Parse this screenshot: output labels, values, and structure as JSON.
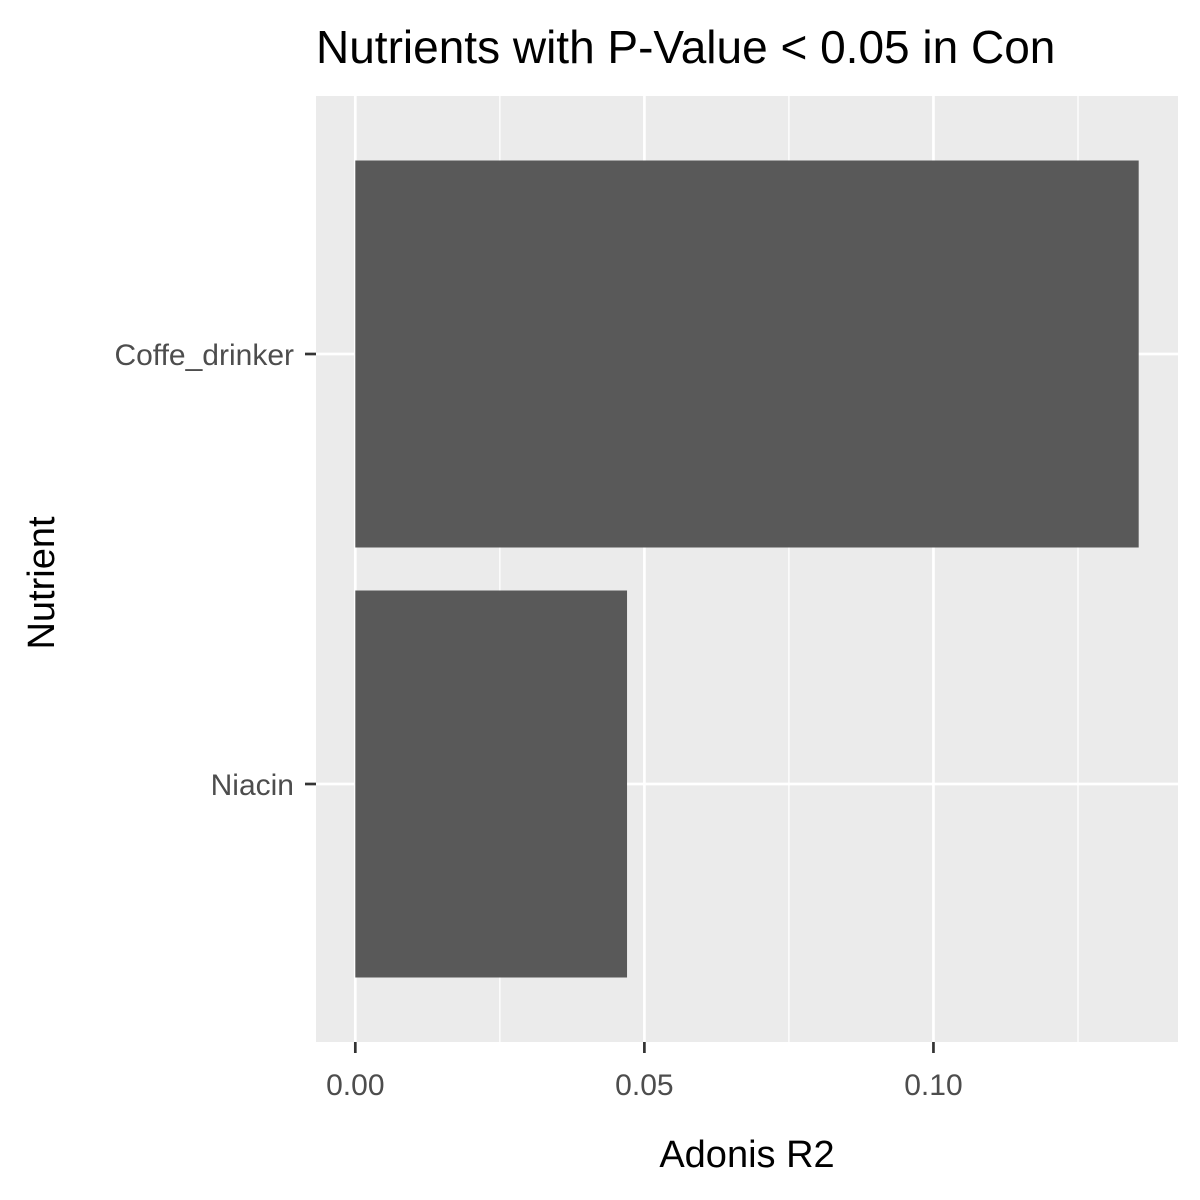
{
  "chart_data": {
    "type": "bar",
    "orientation": "horizontal",
    "title": "Nutrients with P-Value < 0.05 in Con",
    "xlabel": "Adonis R2",
    "ylabel": "Nutrient",
    "categories": [
      "Coffe_drinker",
      "Niacin"
    ],
    "values": [
      0.1355,
      0.047
    ],
    "xlim": [
      -0.0068,
      0.1423
    ],
    "x_ticks": [
      0.0,
      0.05,
      0.1
    ],
    "x_tick_labels": [
      "0.00",
      "0.05",
      "0.10"
    ],
    "grid": true,
    "legend": "none",
    "colors": {
      "bar": "#595959",
      "panel": "#ebebeb",
      "grid": "#ffffff",
      "tick_text": "#4d4d4d",
      "text": "#000000"
    }
  }
}
